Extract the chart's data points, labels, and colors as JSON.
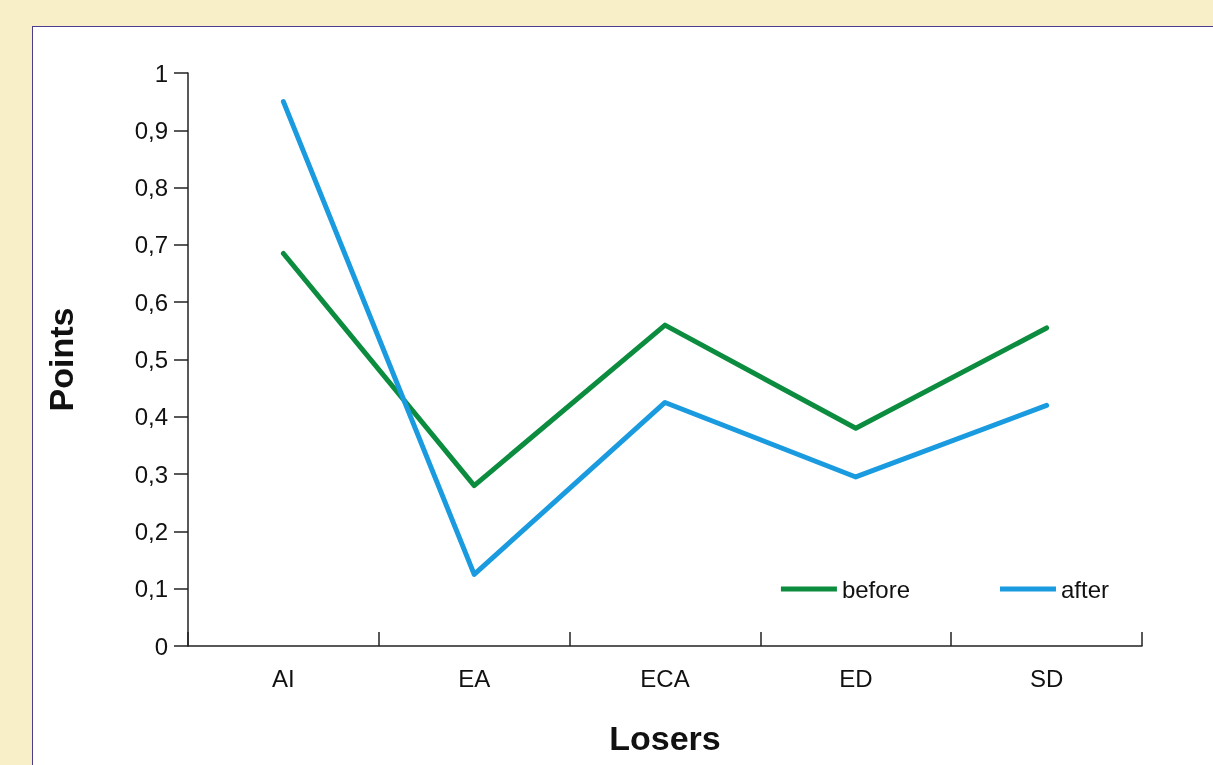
{
  "chart_data": {
    "type": "line",
    "xlabel": "Losers",
    "ylabel": "Points",
    "categories": [
      "AI",
      "EA",
      "ECA",
      "ED",
      "SD"
    ],
    "series": [
      {
        "name": "before",
        "color": "#0b8c3e",
        "values": [
          0.685,
          0.28,
          0.56,
          0.38,
          0.555
        ]
      },
      {
        "name": "after",
        "color": "#1a9be0",
        "values": [
          0.95,
          0.125,
          0.425,
          0.295,
          0.42
        ]
      }
    ],
    "ylim": [
      0,
      1
    ],
    "yticks": [
      0,
      {
        "value": 0.1,
        "label": "0,1"
      },
      {
        "value": 0.2,
        "label": "0,2"
      },
      {
        "value": 0.3,
        "label": "0,3"
      },
      {
        "value": 0.4,
        "label": "0,4"
      },
      {
        "value": 0.5,
        "label": "0,5"
      },
      {
        "value": 0.6,
        "label": "0,6"
      },
      {
        "value": 0.7,
        "label": "0,7"
      },
      {
        "value": 0.8,
        "label": "0,8"
      },
      {
        "value": 0.9,
        "label": "0,9"
      },
      1
    ],
    "legend": "bottom right",
    "marker": "none"
  }
}
